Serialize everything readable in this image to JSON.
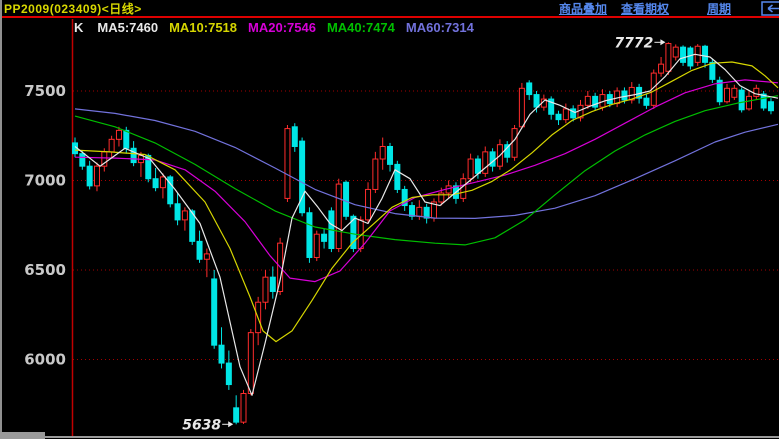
{
  "title_bar": {
    "symbol": "PP2009(023409)<日线>",
    "menu_items": [
      "商品叠加",
      "查看期权",
      "周期"
    ],
    "back_icon": "left-arrow-in-box",
    "link_color": "#5588EE",
    "symbol_color": "#D8D800"
  },
  "legend": {
    "k_label": "K",
    "items": [
      {
        "label": "MA5:7460",
        "color": "#E8E8E8"
      },
      {
        "label": "MA10:7518",
        "color": "#D6D600"
      },
      {
        "label": "MA20:7546",
        "color": "#D600D6"
      },
      {
        "label": "MA40:7474",
        "color": "#00BE00"
      },
      {
        "label": "MA60:7314",
        "color": "#7272DC"
      }
    ]
  },
  "chart_data": {
    "type": "candlestick",
    "title": "PP2009 daily K-line",
    "period": "日线",
    "grid": "dotted horizontal lines at each y tick",
    "legend_position": "top-left",
    "y_axis": {
      "ticks": [
        7500,
        7000,
        6500,
        6000
      ],
      "range": [
        5550,
        7820
      ]
    },
    "colors": {
      "up": "#FF2C2C",
      "down": "#00E6E6",
      "axis": "#C00000",
      "grid": "#A40000",
      "tick_text": "#C8C8C8",
      "annotation": "#E8E8E8",
      "background": "#000000"
    },
    "annotations": [
      {
        "label": "7772",
        "price": 7772,
        "index": 81
      },
      {
        "label": "5638",
        "price": 5638,
        "index": 22
      }
    ],
    "candles_format": [
      "open",
      "high",
      "low",
      "close"
    ],
    "candles": [
      [
        7210,
        7240,
        7130,
        7150
      ],
      [
        7150,
        7170,
        7060,
        7080
      ],
      [
        7080,
        7110,
        6950,
        6970
      ],
      [
        6970,
        7100,
        6940,
        7080
      ],
      [
        7080,
        7180,
        7050,
        7160
      ],
      [
        7160,
        7250,
        7130,
        7230
      ],
      [
        7230,
        7300,
        7190,
        7280
      ],
      [
        7280,
        7300,
        7150,
        7180
      ],
      [
        7180,
        7220,
        7080,
        7100
      ],
      [
        7100,
        7160,
        7020,
        7140
      ],
      [
        7140,
        7150,
        6990,
        7010
      ],
      [
        7010,
        7070,
        6940,
        6960
      ],
      [
        6960,
        7040,
        6900,
        7020
      ],
      [
        7020,
        7030,
        6850,
        6870
      ],
      [
        6870,
        6930,
        6750,
        6780
      ],
      [
        6780,
        6850,
        6720,
        6830
      ],
      [
        6830,
        6840,
        6640,
        6660
      ],
      [
        6660,
        6720,
        6540,
        6560
      ],
      [
        6560,
        6620,
        6460,
        6590
      ],
      [
        6450,
        6500,
        6060,
        6080
      ],
      [
        6080,
        6180,
        5950,
        5980
      ],
      [
        5980,
        6050,
        5830,
        5860
      ],
      [
        5730,
        5800,
        5638,
        5650
      ],
      [
        5650,
        5830,
        5640,
        5810
      ],
      [
        5810,
        6170,
        5800,
        6150
      ],
      [
        6150,
        6350,
        6080,
        6320
      ],
      [
        6320,
        6500,
        6280,
        6460
      ],
      [
        6460,
        6520,
        6340,
        6380
      ],
      [
        6380,
        6680,
        6360,
        6650
      ],
      [
        6900,
        7310,
        6880,
        7290
      ],
      [
        7300,
        7320,
        7160,
        7190
      ],
      [
        7220,
        7240,
        6800,
        6820
      ],
      [
        6820,
        6850,
        6540,
        6570
      ],
      [
        6570,
        6720,
        6550,
        6700
      ],
      [
        6700,
        6730,
        6620,
        6660
      ],
      [
        6830,
        6850,
        6600,
        6620
      ],
      [
        6620,
        7010,
        6600,
        6980
      ],
      [
        6990,
        7000,
        6780,
        6800
      ],
      [
        6800,
        6810,
        6600,
        6620
      ],
      [
        6620,
        6800,
        6600,
        6780
      ],
      [
        6780,
        6990,
        6760,
        6950
      ],
      [
        6950,
        7160,
        6930,
        7120
      ],
      [
        7120,
        7240,
        7060,
        7190
      ],
      [
        7190,
        7210,
        7050,
        7090
      ],
      [
        7090,
        7110,
        6930,
        6950
      ],
      [
        6950,
        6970,
        6830,
        6860
      ],
      [
        6860,
        6880,
        6780,
        6800
      ],
      [
        6800,
        6890,
        6780,
        6850
      ],
      [
        6850,
        6870,
        6760,
        6790
      ],
      [
        6790,
        6900,
        6770,
        6880
      ],
      [
        6880,
        6960,
        6860,
        6930
      ],
      [
        6930,
        7000,
        6900,
        6970
      ],
      [
        6970,
        6990,
        6870,
        6900
      ],
      [
        6900,
        7040,
        6880,
        7010
      ],
      [
        7010,
        7150,
        6990,
        7120
      ],
      [
        7120,
        7140,
        7010,
        7040
      ],
      [
        7040,
        7190,
        7020,
        7160
      ],
      [
        7160,
        7180,
        7050,
        7080
      ],
      [
        7080,
        7230,
        7060,
        7200
      ],
      [
        7200,
        7220,
        7100,
        7130
      ],
      [
        7130,
        7310,
        7110,
        7290
      ],
      [
        7300,
        7545,
        7290,
        7515
      ],
      [
        7545,
        7560,
        7450,
        7480
      ],
      [
        7480,
        7500,
        7380,
        7410
      ],
      [
        7410,
        7480,
        7390,
        7455
      ],
      [
        7455,
        7470,
        7340,
        7370
      ],
      [
        7370,
        7390,
        7310,
        7340
      ],
      [
        7340,
        7430,
        7320,
        7400
      ],
      [
        7400,
        7420,
        7330,
        7350
      ],
      [
        7350,
        7450,
        7330,
        7420
      ],
      [
        7420,
        7500,
        7400,
        7470
      ],
      [
        7470,
        7490,
        7390,
        7410
      ],
      [
        7410,
        7510,
        7390,
        7480
      ],
      [
        7480,
        7500,
        7410,
        7430
      ],
      [
        7430,
        7520,
        7410,
        7500
      ],
      [
        7500,
        7520,
        7430,
        7450
      ],
      [
        7450,
        7550,
        7430,
        7520
      ],
      [
        7520,
        7540,
        7430,
        7460
      ],
      [
        7460,
        7480,
        7400,
        7420
      ],
      [
        7420,
        7620,
        7400,
        7600
      ],
      [
        7600,
        7690,
        7580,
        7650
      ],
      [
        7610,
        7772,
        7590,
        7765
      ],
      [
        7690,
        7760,
        7670,
        7745
      ],
      [
        7745,
        7755,
        7640,
        7660
      ],
      [
        7740,
        7750,
        7620,
        7640
      ],
      [
        7660,
        7762,
        7640,
        7750
      ],
      [
        7750,
        7758,
        7630,
        7660
      ],
      [
        7660,
        7680,
        7545,
        7565
      ],
      [
        7560,
        7580,
        7420,
        7440
      ],
      [
        7440,
        7540,
        7430,
        7515
      ],
      [
        7465,
        7535,
        7450,
        7515
      ],
      [
        7505,
        7520,
        7380,
        7395
      ],
      [
        7400,
        7500,
        7390,
        7470
      ],
      [
        7470,
        7535,
        7450,
        7515
      ],
      [
        7483,
        7500,
        7390,
        7405
      ],
      [
        7440,
        7460,
        7370,
        7390
      ]
    ],
    "ma_lines": [
      {
        "name": "MA60",
        "color": "#7272DC",
        "points": [
          [
            75,
            7400
          ],
          [
            115,
            7375
          ],
          [
            155,
            7335
          ],
          [
            195,
            7275
          ],
          [
            235,
            7185
          ],
          [
            275,
            7070
          ],
          [
            315,
            6950
          ],
          [
            355,
            6865
          ],
          [
            395,
            6815
          ],
          [
            435,
            6790
          ],
          [
            475,
            6788
          ],
          [
            515,
            6805
          ],
          [
            555,
            6845
          ],
          [
            595,
            6915
          ],
          [
            635,
            7010
          ],
          [
            675,
            7110
          ],
          [
            715,
            7215
          ],
          [
            745,
            7270
          ],
          [
            778,
            7314
          ]
        ]
      },
      {
        "name": "MA40",
        "color": "#00BE00",
        "points": [
          [
            75,
            7360
          ],
          [
            115,
            7300
          ],
          [
            155,
            7210
          ],
          [
            195,
            7090
          ],
          [
            235,
            6955
          ],
          [
            275,
            6830
          ],
          [
            315,
            6740
          ],
          [
            355,
            6700
          ],
          [
            395,
            6670
          ],
          [
            435,
            6650
          ],
          [
            465,
            6640
          ],
          [
            495,
            6680
          ],
          [
            525,
            6780
          ],
          [
            555,
            6920
          ],
          [
            585,
            7055
          ],
          [
            615,
            7165
          ],
          [
            645,
            7255
          ],
          [
            675,
            7330
          ],
          [
            705,
            7390
          ],
          [
            740,
            7435
          ],
          [
            778,
            7474
          ]
        ]
      },
      {
        "name": "MA20",
        "color": "#D600D6",
        "points": [
          [
            75,
            7130
          ],
          [
            115,
            7125
          ],
          [
            155,
            7115
          ],
          [
            185,
            7060
          ],
          [
            215,
            6940
          ],
          [
            245,
            6770
          ],
          [
            270,
            6580
          ],
          [
            290,
            6455
          ],
          [
            315,
            6435
          ],
          [
            340,
            6495
          ],
          [
            365,
            6650
          ],
          [
            390,
            6830
          ],
          [
            415,
            6905
          ],
          [
            445,
            6950
          ],
          [
            475,
            6990
          ],
          [
            505,
            7030
          ],
          [
            535,
            7085
          ],
          [
            565,
            7150
          ],
          [
            595,
            7230
          ],
          [
            625,
            7320
          ],
          [
            655,
            7410
          ],
          [
            685,
            7490
          ],
          [
            715,
            7540
          ],
          [
            745,
            7562
          ],
          [
            778,
            7546
          ]
        ]
      },
      {
        "name": "MA10",
        "color": "#D6D600",
        "points": [
          [
            75,
            7170
          ],
          [
            110,
            7160
          ],
          [
            145,
            7145
          ],
          [
            175,
            7060
          ],
          [
            205,
            6880
          ],
          [
            230,
            6620
          ],
          [
            250,
            6350
          ],
          [
            263,
            6160
          ],
          [
            276,
            6100
          ],
          [
            292,
            6160
          ],
          [
            312,
            6330
          ],
          [
            332,
            6510
          ],
          [
            352,
            6650
          ],
          [
            372,
            6750
          ],
          [
            392,
            6850
          ],
          [
            412,
            6905
          ],
          [
            432,
            6920
          ],
          [
            452,
            6920
          ],
          [
            472,
            6945
          ],
          [
            492,
            6995
          ],
          [
            512,
            7065
          ],
          [
            532,
            7155
          ],
          [
            552,
            7255
          ],
          [
            572,
            7335
          ],
          [
            592,
            7385
          ],
          [
            612,
            7425
          ],
          [
            632,
            7455
          ],
          [
            652,
            7495
          ],
          [
            672,
            7555
          ],
          [
            692,
            7615
          ],
          [
            712,
            7655
          ],
          [
            732,
            7662
          ],
          [
            752,
            7640
          ],
          [
            765,
            7585
          ],
          [
            778,
            7518
          ]
        ]
      },
      {
        "name": "MA5",
        "color": "#E8E8E8",
        "points": [
          [
            75,
            7190
          ],
          [
            100,
            7080
          ],
          [
            125,
            7180
          ],
          [
            150,
            7120
          ],
          [
            175,
            6950
          ],
          [
            200,
            6760
          ],
          [
            220,
            6460
          ],
          [
            240,
            5960
          ],
          [
            252,
            5800
          ],
          [
            265,
            6090
          ],
          [
            280,
            6440
          ],
          [
            292,
            6790
          ],
          [
            305,
            6940
          ],
          [
            318,
            6850
          ],
          [
            330,
            6760
          ],
          [
            342,
            6720
          ],
          [
            355,
            6790
          ],
          [
            368,
            6760
          ],
          [
            382,
            6900
          ],
          [
            395,
            7060
          ],
          [
            410,
            7010
          ],
          [
            425,
            6880
          ],
          [
            440,
            6860
          ],
          [
            455,
            6930
          ],
          [
            470,
            7000
          ],
          [
            485,
            7070
          ],
          [
            500,
            7140
          ],
          [
            515,
            7230
          ],
          [
            530,
            7370
          ],
          [
            545,
            7450
          ],
          [
            560,
            7420
          ],
          [
            575,
            7380
          ],
          [
            590,
            7415
          ],
          [
            605,
            7445
          ],
          [
            620,
            7465
          ],
          [
            635,
            7480
          ],
          [
            650,
            7500
          ],
          [
            665,
            7580
          ],
          [
            680,
            7680
          ],
          [
            695,
            7705
          ],
          [
            710,
            7690
          ],
          [
            725,
            7620
          ],
          [
            740,
            7530
          ],
          [
            755,
            7485
          ],
          [
            778,
            7460
          ]
        ]
      }
    ]
  }
}
